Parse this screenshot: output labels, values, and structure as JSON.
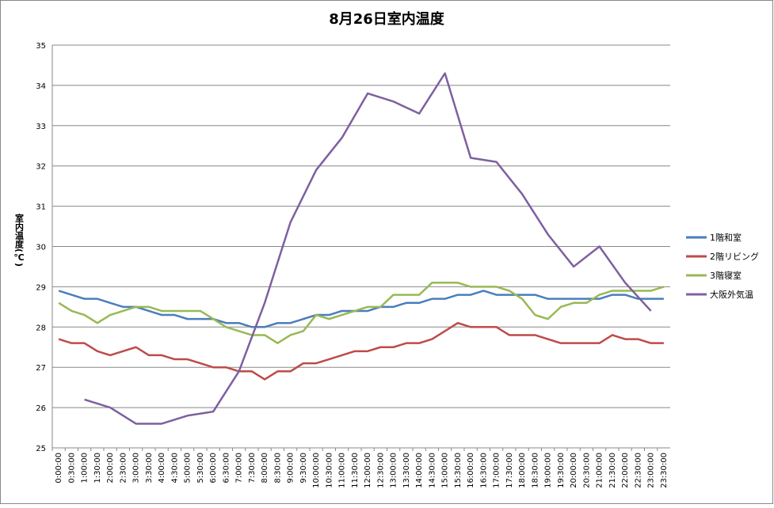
{
  "chart_data": {
    "type": "line",
    "title": "8月26日室内温度",
    "y_label": "室内温度(℃)",
    "categories": [
      "0:00:00",
      "0:30:00",
      "1:00:00",
      "1:30:00",
      "2:00:00",
      "2:30:00",
      "3:00:00",
      "3:30:00",
      "4:00:00",
      "4:30:00",
      "5:00:00",
      "5:30:00",
      "6:00:00",
      "6:30:00",
      "7:00:00",
      "7:30:00",
      "8:00:00",
      "8:30:00",
      "9:00:00",
      "9:30:00",
      "10:00:00",
      "10:30:00",
      "11:00:00",
      "11:30:00",
      "12:00:00",
      "12:30:00",
      "13:00:00",
      "13:30:00",
      "14:00:00",
      "14:30:00",
      "15:00:00",
      "15:30:00",
      "16:00:00",
      "16:30:00",
      "17:00:00",
      "17:30:00",
      "18:00:00",
      "18:30:00",
      "19:00:00",
      "19:30:00",
      "20:00:00",
      "20:30:00",
      "21:00:00",
      "21:30:00",
      "22:00:00",
      "22:30:00",
      "23:00:00",
      "23:30:00"
    ],
    "series": [
      {
        "name": "1階和室",
        "color": "#4a7ebb",
        "values": [
          28.9,
          28.8,
          28.7,
          28.7,
          28.6,
          28.5,
          28.5,
          28.4,
          28.3,
          28.3,
          28.2,
          28.2,
          28.2,
          28.1,
          28.1,
          28.0,
          28.0,
          28.1,
          28.1,
          28.2,
          28.3,
          28.3,
          28.4,
          28.4,
          28.4,
          28.5,
          28.5,
          28.6,
          28.6,
          28.7,
          28.7,
          28.8,
          28.8,
          28.9,
          28.8,
          28.8,
          28.8,
          28.8,
          28.7,
          28.7,
          28.7,
          28.7,
          28.7,
          28.8,
          28.8,
          28.7,
          28.7,
          28.7
        ]
      },
      {
        "name": "2階リビング",
        "color": "#be4b48",
        "values": [
          27.7,
          27.6,
          27.6,
          27.4,
          27.3,
          27.4,
          27.5,
          27.3,
          27.3,
          27.2,
          27.2,
          27.1,
          27.0,
          27.0,
          26.9,
          26.9,
          26.7,
          26.9,
          26.9,
          27.1,
          27.1,
          27.2,
          27.3,
          27.4,
          27.4,
          27.5,
          27.5,
          27.6,
          27.6,
          27.7,
          27.9,
          28.1,
          28.0,
          28.0,
          28.0,
          27.8,
          27.8,
          27.8,
          27.7,
          27.6,
          27.6,
          27.6,
          27.6,
          27.8,
          27.7,
          27.7,
          27.6,
          27.6
        ]
      },
      {
        "name": "3階寝室",
        "color": "#98b954",
        "values": [
          28.6,
          28.4,
          28.3,
          28.1,
          28.3,
          28.4,
          28.5,
          28.5,
          28.4,
          28.4,
          28.4,
          28.4,
          28.2,
          28.0,
          27.9,
          27.8,
          27.8,
          27.6,
          27.8,
          27.9,
          28.3,
          28.2,
          28.3,
          28.4,
          28.5,
          28.5,
          28.8,
          28.8,
          28.8,
          29.1,
          29.1,
          29.1,
          29.0,
          29.0,
          29.0,
          28.9,
          28.7,
          28.3,
          28.2,
          28.5,
          28.6,
          28.6,
          28.8,
          28.9,
          28.9,
          28.9,
          28.9,
          29.0
        ]
      },
      {
        "name": "大阪外気温",
        "color": "#7d60a0",
        "x": [
          "1:00:00",
          "2:00:00",
          "3:00:00",
          "4:00:00",
          "5:00:00",
          "6:00:00",
          "7:00:00",
          "8:00:00",
          "9:00:00",
          "10:00:00",
          "11:00:00",
          "12:00:00",
          "13:00:00",
          "14:00:00",
          "15:00:00",
          "16:00:00",
          "17:00:00",
          "18:00:00",
          "19:00:00",
          "20:00:00",
          "21:00:00",
          "22:00:00",
          "23:00:00"
        ],
        "values": [
          26.2,
          26.0,
          25.6,
          25.6,
          25.8,
          25.9,
          26.9,
          28.6,
          30.6,
          31.9,
          32.7,
          33.8,
          33.6,
          33.3,
          34.3,
          32.2,
          32.1,
          31.3,
          30.3,
          29.5,
          30.0,
          29.1,
          28.4
        ]
      }
    ],
    "ylim": [
      25,
      35
    ],
    "yticks": [
      25,
      26,
      27,
      28,
      29,
      30,
      31,
      32,
      33,
      34,
      35
    ],
    "grid": true,
    "legend": "right"
  }
}
